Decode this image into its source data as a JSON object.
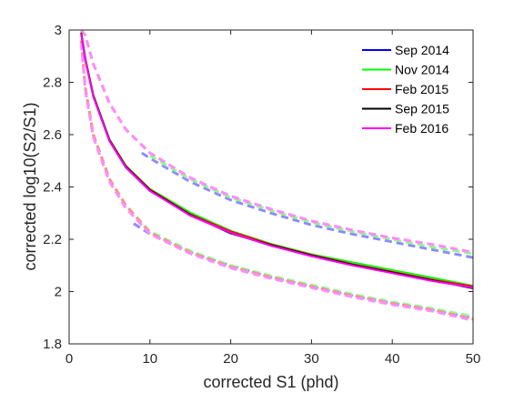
{
  "chart_data": {
    "type": "line",
    "xlabel": "corrected S1 (phd)",
    "ylabel": "corrected log10(S2/S1)",
    "xlim": [
      0,
      50
    ],
    "ylim": [
      1.8,
      3
    ],
    "xticks": [
      "0",
      "10",
      "20",
      "30",
      "40",
      "50"
    ],
    "yticks": [
      "1.8",
      "2",
      "2.2",
      "2.4",
      "2.6",
      "2.8",
      "3"
    ],
    "grid": false,
    "legend_position": "top-right",
    "series": [
      {
        "name": "Sep 2014",
        "color": "#0000ff",
        "median": [
          [
            1.5,
            2.98
          ],
          [
            2,
            2.88
          ],
          [
            3,
            2.74
          ],
          [
            5,
            2.57
          ],
          [
            7,
            2.47
          ],
          [
            10,
            2.38
          ],
          [
            15,
            2.29
          ],
          [
            20,
            2.22
          ],
          [
            25,
            2.17
          ],
          [
            30,
            2.135
          ],
          [
            35,
            2.1
          ],
          [
            40,
            2.07
          ],
          [
            45,
            2.04
          ],
          [
            50,
            2.01
          ]
        ],
        "upper": [
          [
            9,
            2.53
          ],
          [
            10,
            2.51
          ],
          [
            15,
            2.42
          ],
          [
            20,
            2.35
          ],
          [
            25,
            2.3
          ],
          [
            30,
            2.255
          ],
          [
            35,
            2.22
          ],
          [
            40,
            2.19
          ],
          [
            45,
            2.16
          ],
          [
            50,
            2.13
          ]
        ],
        "lower": [
          [
            8,
            2.26
          ],
          [
            10,
            2.22
          ],
          [
            15,
            2.15
          ],
          [
            20,
            2.1
          ],
          [
            25,
            2.055
          ],
          [
            30,
            2.02
          ],
          [
            35,
            1.985
          ],
          [
            40,
            1.955
          ],
          [
            45,
            1.93
          ],
          [
            50,
            1.9
          ]
        ]
      },
      {
        "name": "Nov 2014",
        "color": "#00ff00",
        "median": [
          [
            1.5,
            2.99
          ],
          [
            2,
            2.89
          ],
          [
            3,
            2.75
          ],
          [
            5,
            2.58
          ],
          [
            7,
            2.48
          ],
          [
            10,
            2.39
          ],
          [
            15,
            2.3
          ],
          [
            20,
            2.23
          ],
          [
            25,
            2.18
          ],
          [
            30,
            2.14
          ],
          [
            35,
            2.11
          ],
          [
            40,
            2.08
          ],
          [
            45,
            2.05
          ],
          [
            50,
            2.02
          ]
        ],
        "upper": [
          [
            10,
            2.52
          ],
          [
            15,
            2.43
          ],
          [
            20,
            2.36
          ],
          [
            25,
            2.31
          ],
          [
            30,
            2.265
          ],
          [
            35,
            2.23
          ],
          [
            40,
            2.2
          ],
          [
            45,
            2.17
          ],
          [
            50,
            2.145
          ]
        ],
        "lower": [
          [
            1.5,
            2.96
          ],
          [
            2,
            2.78
          ],
          [
            3,
            2.6
          ],
          [
            5,
            2.43
          ],
          [
            7,
            2.33
          ],
          [
            10,
            2.23
          ],
          [
            15,
            2.155
          ],
          [
            20,
            2.1
          ],
          [
            25,
            2.06
          ],
          [
            30,
            2.025
          ],
          [
            35,
            1.99
          ],
          [
            40,
            1.96
          ],
          [
            45,
            1.935
          ],
          [
            50,
            1.905
          ]
        ]
      },
      {
        "name": "Feb 2015",
        "color": "#ff0000",
        "median": [
          [
            1.5,
            2.99
          ],
          [
            2,
            2.89
          ],
          [
            3,
            2.75
          ],
          [
            5,
            2.58
          ],
          [
            7,
            2.48
          ],
          [
            10,
            2.39
          ],
          [
            15,
            2.295
          ],
          [
            20,
            2.23
          ],
          [
            25,
            2.18
          ],
          [
            30,
            2.14
          ],
          [
            35,
            2.105
          ],
          [
            40,
            2.075
          ],
          [
            45,
            2.045
          ],
          [
            50,
            2.02
          ]
        ],
        "upper": [
          [
            1.5,
            3.0
          ],
          [
            2,
            2.98
          ],
          [
            3,
            2.87
          ],
          [
            5,
            2.72
          ],
          [
            7,
            2.62
          ],
          [
            10,
            2.53
          ],
          [
            15,
            2.435
          ],
          [
            20,
            2.365
          ],
          [
            25,
            2.315
          ],
          [
            30,
            2.27
          ],
          [
            35,
            2.235
          ],
          [
            40,
            2.205
          ],
          [
            45,
            2.18
          ],
          [
            50,
            2.15
          ]
        ],
        "lower": [
          [
            1.5,
            2.96
          ],
          [
            2,
            2.78
          ],
          [
            3,
            2.6
          ],
          [
            5,
            2.43
          ],
          [
            7,
            2.33
          ],
          [
            10,
            2.225
          ],
          [
            15,
            2.15
          ],
          [
            20,
            2.095
          ],
          [
            25,
            2.055
          ],
          [
            30,
            2.02
          ],
          [
            35,
            1.985
          ],
          [
            40,
            1.955
          ],
          [
            45,
            1.93
          ],
          [
            50,
            1.895
          ]
        ]
      },
      {
        "name": "Sep 2015",
        "color": "#000000",
        "median": [
          [
            1.5,
            2.99
          ],
          [
            2,
            2.89
          ],
          [
            3,
            2.75
          ],
          [
            5,
            2.58
          ],
          [
            7,
            2.48
          ],
          [
            10,
            2.39
          ],
          [
            15,
            2.295
          ],
          [
            20,
            2.225
          ],
          [
            25,
            2.18
          ],
          [
            30,
            2.14
          ],
          [
            35,
            2.105
          ],
          [
            40,
            2.075
          ],
          [
            45,
            2.045
          ],
          [
            50,
            2.015
          ]
        ],
        "upper": [],
        "lower": []
      },
      {
        "name": "Feb 2016",
        "color": "#ff00ff",
        "median": [
          [
            1.5,
            2.99
          ],
          [
            2,
            2.89
          ],
          [
            3,
            2.75
          ],
          [
            5,
            2.58
          ],
          [
            7,
            2.48
          ],
          [
            10,
            2.39
          ],
          [
            15,
            2.295
          ],
          [
            20,
            2.23
          ],
          [
            25,
            2.18
          ],
          [
            30,
            2.14
          ],
          [
            35,
            2.105
          ],
          [
            40,
            2.075
          ],
          [
            45,
            2.045
          ],
          [
            50,
            2.02
          ]
        ],
        "upper": [
          [
            1.5,
            3.0
          ],
          [
            2,
            2.98
          ],
          [
            3,
            2.87
          ],
          [
            5,
            2.72
          ],
          [
            7,
            2.62
          ],
          [
            10,
            2.53
          ],
          [
            15,
            2.435
          ],
          [
            20,
            2.365
          ],
          [
            25,
            2.315
          ],
          [
            30,
            2.27
          ],
          [
            35,
            2.235
          ],
          [
            40,
            2.205
          ],
          [
            45,
            2.18
          ],
          [
            50,
            2.15
          ]
        ],
        "lower": [
          [
            1.5,
            2.95
          ],
          [
            2,
            2.77
          ],
          [
            3,
            2.59
          ],
          [
            5,
            2.42
          ],
          [
            7,
            2.32
          ],
          [
            10,
            2.22
          ],
          [
            15,
            2.145
          ],
          [
            20,
            2.09
          ],
          [
            25,
            2.05
          ],
          [
            30,
            2.015
          ],
          [
            35,
            1.98
          ],
          [
            40,
            1.95
          ],
          [
            45,
            1.925
          ],
          [
            50,
            1.89
          ]
        ]
      }
    ]
  }
}
